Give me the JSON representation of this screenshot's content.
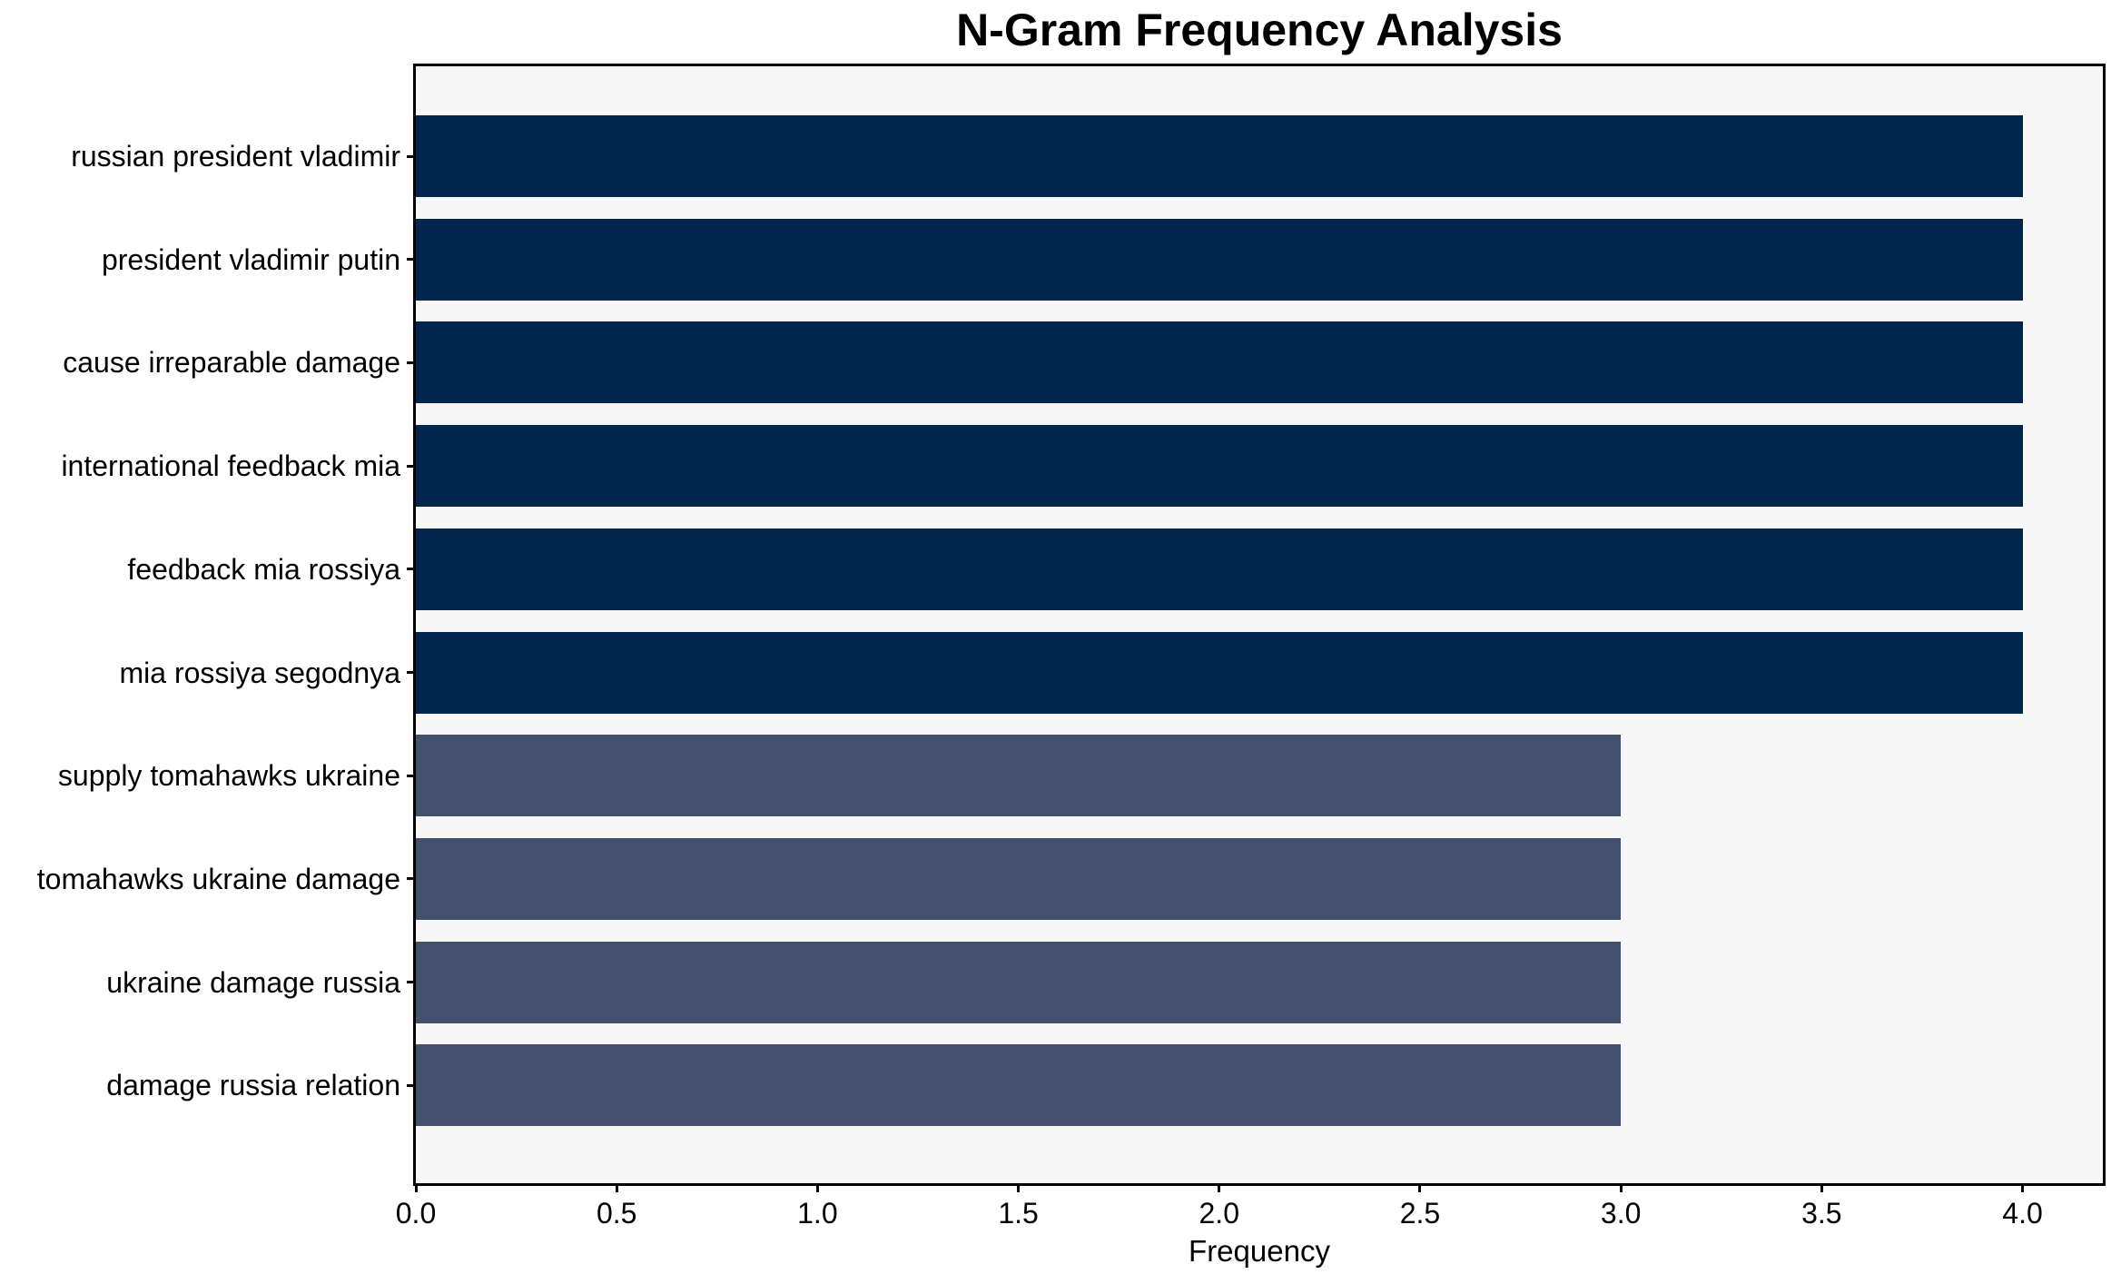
{
  "title": "N-Gram Frequency Analysis",
  "chart_data": {
    "type": "bar",
    "orientation": "horizontal",
    "title": "N-Gram Frequency Analysis",
    "xlabel": "Frequency",
    "ylabel": "",
    "categories": [
      "russian president vladimir",
      "president vladimir putin",
      "cause irreparable damage",
      "international feedback mia",
      "feedback mia rossiya",
      "mia rossiya segodnya",
      "supply tomahawks ukraine",
      "tomahawks ukraine damage",
      "ukraine damage russia",
      "damage russia relation"
    ],
    "values": [
      4,
      4,
      4,
      4,
      4,
      4,
      3,
      3,
      3,
      3
    ],
    "bar_colors": [
      "#02254e",
      "#02254e",
      "#02254e",
      "#02254e",
      "#02254e",
      "#02254e",
      "#454f6e",
      "#454f6e",
      "#454f6e",
      "#454f6e"
    ],
    "xlim": [
      0,
      4.2
    ],
    "xticks": [
      0.0,
      0.5,
      1.0,
      1.5,
      2.0,
      2.5,
      3.0,
      3.5,
      4.0
    ],
    "xtick_labels": [
      "0.0",
      "0.5",
      "1.0",
      "1.5",
      "2.0",
      "2.5",
      "3.0",
      "3.5",
      "4.0"
    ],
    "grid": false,
    "legend": null,
    "colors": {
      "bar_high": "#02254e",
      "bar_low": "#454f6e",
      "plot_background": "#f7f7f8",
      "figure_background": "#ffffff",
      "spine": "#000000",
      "text": "#000000"
    }
  }
}
